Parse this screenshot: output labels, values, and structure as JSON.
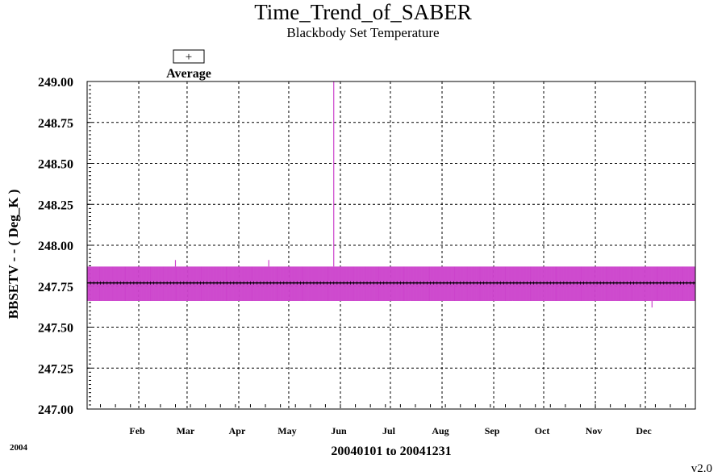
{
  "chart_data": {
    "type": "line",
    "title": "Time_Trend_of_SABER",
    "subtitle": "Blackbody Set Temperature",
    "ylabel": "BBSETV  - - ( Deg_K )",
    "xlabel": "20040101 to 20041231",
    "year_label": "2004",
    "version_label": "v2.0",
    "legend": {
      "symbol": "+",
      "label": "Average"
    },
    "ylim": [
      247.0,
      249.0
    ],
    "y_ticks": [
      "247.00",
      "247.25",
      "247.50",
      "247.75",
      "248.00",
      "248.25",
      "248.50",
      "248.75",
      "249.00"
    ],
    "x_range_days": [
      1,
      366
    ],
    "x_ticks": [
      {
        "label": "Feb",
        "day": 32
      },
      {
        "label": "Mar",
        "day": 61
      },
      {
        "label": "Apr",
        "day": 92
      },
      {
        "label": "May",
        "day": 122
      },
      {
        "label": "Jun",
        "day": 153
      },
      {
        "label": "Jul",
        "day": 183
      },
      {
        "label": "Aug",
        "day": 214
      },
      {
        "label": "Sep",
        "day": 245
      },
      {
        "label": "Oct",
        "day": 275
      },
      {
        "label": "Nov",
        "day": 306
      },
      {
        "label": "Dec",
        "day": 336
      }
    ],
    "grid": true,
    "series": [
      {
        "color": "#cc44cc",
        "typical_max": 247.87,
        "typical_min": 247.66,
        "spikes": [
          {
            "day": 149,
            "value": 249.0
          },
          {
            "day": 54,
            "value": 247.91
          },
          {
            "day": 110,
            "value": 247.91
          },
          {
            "day": 340,
            "value": 247.62
          }
        ]
      },
      {
        "name": "Average",
        "color": "#000000",
        "value": 247.77
      }
    ]
  }
}
